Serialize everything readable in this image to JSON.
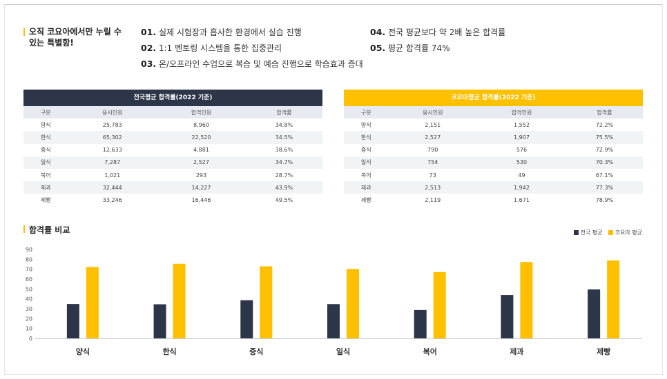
{
  "intro": {
    "title": "오직 코요아에서만 누릴 수 있는 특별함!",
    "features": [
      {
        "num": "01.",
        "text": "실제 시험장과 흡사한 환경에서 실습 진행"
      },
      {
        "num": "02.",
        "text": "1:1 멘토링 시스템을 통한 집중관리"
      },
      {
        "num": "03.",
        "text": "온/오프라인 수업으로 복습 및 예습 진행으로 학습효과 증대"
      },
      {
        "num": "04.",
        "text": "전국 평균보다 약 2배 높은 합격률"
      },
      {
        "num": "05.",
        "text": "평균 합격률 74%"
      }
    ]
  },
  "colors": {
    "national": "#2d3648",
    "koyoa": "#ffc000"
  },
  "national_table": {
    "title": "전국평균 합격률(2022 기준)",
    "headers": [
      "구분",
      "응시인원",
      "합격인원",
      "합격률"
    ],
    "rows": [
      [
        "양식",
        "25,783",
        "8,960",
        "34.8%"
      ],
      [
        "한식",
        "65,302",
        "22,520",
        "34.5%"
      ],
      [
        "중식",
        "12,633",
        "4,881",
        "38.6%"
      ],
      [
        "일식",
        "7,287",
        "2,527",
        "34.7%"
      ],
      [
        "복어",
        "1,021",
        "293",
        "28.7%"
      ],
      [
        "제과",
        "32,444",
        "14,227",
        "43.9%"
      ],
      [
        "제빵",
        "33,246",
        "16,446",
        "49.5%"
      ]
    ]
  },
  "koyoa_table": {
    "title": "코요아평균 합격률(2022 기준)",
    "headers": [
      "구분",
      "응시인원",
      "합격인원",
      "합격률"
    ],
    "rows": [
      [
        "양식",
        "2,151",
        "1,552",
        "72.2%"
      ],
      [
        "한식",
        "2,527",
        "1,907",
        "75.5%"
      ],
      [
        "중식",
        "790",
        "576",
        "72.9%"
      ],
      [
        "일식",
        "754",
        "530",
        "70.3%"
      ],
      [
        "복어",
        "73",
        "49",
        "67.1%"
      ],
      [
        "제과",
        "2,513",
        "1,942",
        "77.3%"
      ],
      [
        "제빵",
        "2,119",
        "1,671",
        "78.9%"
      ]
    ]
  },
  "chart_data": {
    "type": "bar",
    "title": "합격률 비교",
    "categories": [
      "양식",
      "한식",
      "중식",
      "일식",
      "복어",
      "제과",
      "제빵"
    ],
    "series": [
      {
        "name": "전국 평균",
        "color": "#2d3648",
        "values": [
          34.8,
          34.5,
          38.6,
          34.7,
          28.7,
          43.9,
          49.5
        ]
      },
      {
        "name": "코요아 평균",
        "color": "#ffc000",
        "values": [
          72.2,
          75.5,
          72.9,
          70.3,
          67.1,
          77.3,
          78.9
        ]
      }
    ],
    "ylim": [
      0,
      90
    ],
    "yticks": [
      0,
      10,
      20,
      30,
      40,
      50,
      60,
      70,
      80,
      90
    ],
    "grid": false,
    "legend": "top-right"
  }
}
